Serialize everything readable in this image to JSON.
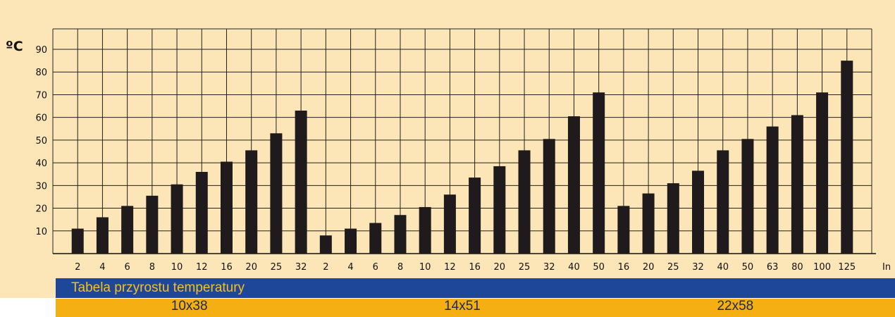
{
  "chart_data": {
    "type": "bar",
    "unit_label": "ºC",
    "x_unit_label": "In",
    "title": "Tabela przyrostu temperatury",
    "ylim": [
      0,
      90
    ],
    "yticks": [
      10,
      20,
      30,
      40,
      50,
      60,
      70,
      80,
      90
    ],
    "grid": true,
    "bar_color": "#1f1b1c",
    "groups": [
      {
        "name": "10x38",
        "categories": [
          "2",
          "4",
          "6",
          "8",
          "10",
          "12",
          "16",
          "20",
          "25",
          "32"
        ],
        "values": [
          11,
          16,
          21,
          25.5,
          30.5,
          36,
          40.5,
          45.5,
          53,
          63
        ]
      },
      {
        "name": "14x51",
        "categories": [
          "2",
          "4",
          "6",
          "8",
          "10",
          "12",
          "16",
          "20",
          "25",
          "32",
          "40",
          "50"
        ],
        "values": [
          8,
          11,
          13.5,
          17,
          20.5,
          26,
          33.5,
          38.5,
          45.5,
          50.5,
          60.5,
          71
        ]
      },
      {
        "name": "22x58",
        "categories": [
          "16",
          "20",
          "25",
          "32",
          "40",
          "50",
          "63",
          "80",
          "100",
          "125"
        ],
        "values": [
          21,
          26.5,
          31,
          36.5,
          45.5,
          50.5,
          56,
          61,
          71,
          85
        ]
      }
    ]
  },
  "colors": {
    "panel_bg": "#fce5b6",
    "caption_bg": "#1f4799",
    "caption_text": "#f6c01e",
    "group_bg": "#f6af12",
    "group_text": "#1c2a5a"
  }
}
